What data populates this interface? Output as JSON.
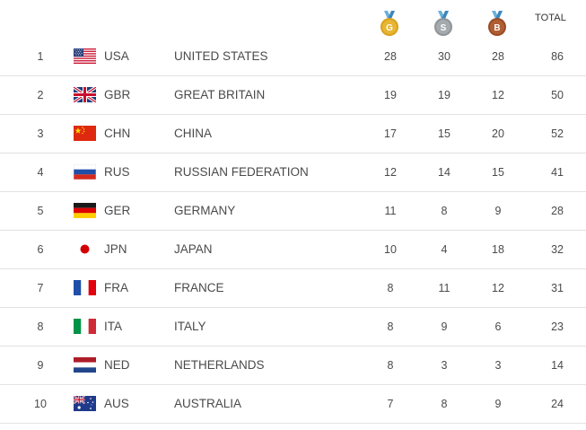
{
  "header": {
    "gold_letter": "G",
    "silver_letter": "S",
    "bronze_letter": "B",
    "total_label": "TOTAL",
    "gold_color": "#d9a21c",
    "silver_color": "#9aa0a4",
    "bronze_color": "#a8562e"
  },
  "rows": [
    {
      "rank": "1",
      "code": "USA",
      "country": "UNITED STATES",
      "gold": "28",
      "silver": "30",
      "bronze": "28",
      "total": "86",
      "flag": "usa-flag-icon"
    },
    {
      "rank": "2",
      "code": "GBR",
      "country": "GREAT BRITAIN",
      "gold": "19",
      "silver": "19",
      "bronze": "12",
      "total": "50",
      "flag": "gbr-flag-icon"
    },
    {
      "rank": "3",
      "code": "CHN",
      "country": "CHINA",
      "gold": "17",
      "silver": "15",
      "bronze": "20",
      "total": "52",
      "flag": "chn-flag-icon"
    },
    {
      "rank": "4",
      "code": "RUS",
      "country": "RUSSIAN FEDERATION",
      "gold": "12",
      "silver": "14",
      "bronze": "15",
      "total": "41",
      "flag": "rus-flag-icon"
    },
    {
      "rank": "5",
      "code": "GER",
      "country": "GERMANY",
      "gold": "11",
      "silver": "8",
      "bronze": "9",
      "total": "28",
      "flag": "ger-flag-icon"
    },
    {
      "rank": "6",
      "code": "JPN",
      "country": "JAPAN",
      "gold": "10",
      "silver": "4",
      "bronze": "18",
      "total": "32",
      "flag": "jpn-flag-icon"
    },
    {
      "rank": "7",
      "code": "FRA",
      "country": "FRANCE",
      "gold": "8",
      "silver": "11",
      "bronze": "12",
      "total": "31",
      "flag": "fra-flag-icon"
    },
    {
      "rank": "8",
      "code": "ITA",
      "country": "ITALY",
      "gold": "8",
      "silver": "9",
      "bronze": "6",
      "total": "23",
      "flag": "ita-flag-icon"
    },
    {
      "rank": "9",
      "code": "NED",
      "country": "NETHERLANDS",
      "gold": "8",
      "silver": "3",
      "bronze": "3",
      "total": "14",
      "flag": "ned-flag-icon"
    },
    {
      "rank": "10",
      "code": "AUS",
      "country": "AUSTRALIA",
      "gold": "7",
      "silver": "8",
      "bronze": "9",
      "total": "24",
      "flag": "aus-flag-icon"
    }
  ]
}
